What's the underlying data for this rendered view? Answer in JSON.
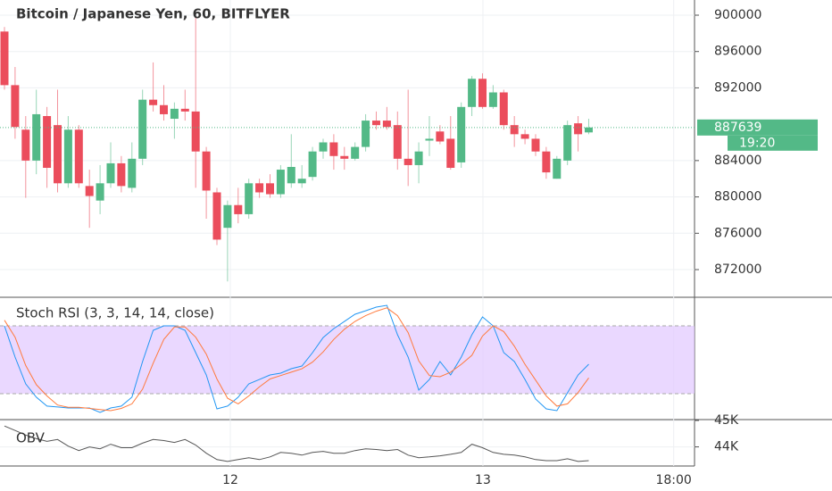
{
  "chart_data": [
    {
      "type": "candlestick",
      "title": "Bitcoin / Japanese Yen, 60, BITFLYER",
      "up_color": "#53b987",
      "down_color": "#eb4d5c",
      "open": [
        898200,
        892300,
        887400,
        884000,
        888900,
        887900,
        881500,
        887400,
        881200,
        879600,
        881500,
        883700,
        881000,
        884200,
        890700,
        890100,
        888600,
        889700,
        889400,
        885000,
        880500,
        876600,
        879100,
        878100,
        881500,
        881500,
        880300,
        881500,
        881500,
        882200,
        885000,
        886000,
        884500,
        884200,
        885500,
        888400,
        888400,
        887900,
        884200,
        883500,
        886200,
        887200,
        886400,
        883800,
        889900,
        893000,
        889900,
        891500,
        887900,
        886900,
        886400,
        885000,
        882000,
        884000,
        888100,
        887100
      ],
      "high": [
        898700,
        894300,
        888900,
        891800,
        889900,
        891800,
        888900,
        887900,
        883000,
        883500,
        886000,
        884500,
        886000,
        891800,
        894800,
        892300,
        890400,
        891800,
        899700,
        885500,
        881000,
        879600,
        881000,
        882000,
        882000,
        882500,
        883500,
        886900,
        883500,
        885500,
        886400,
        886900,
        885500,
        886000,
        889100,
        889400,
        889900,
        889400,
        891800,
        886000,
        888900,
        887900,
        888900,
        890400,
        893300,
        893600,
        892300,
        891800,
        888900,
        887400,
        886900,
        885500,
        884500,
        888400,
        888900,
        888600
      ],
      "low": [
        891800,
        886400,
        879900,
        882500,
        881000,
        880500,
        881000,
        881000,
        876600,
        878100,
        881000,
        880500,
        880500,
        883500,
        889400,
        888400,
        886400,
        888400,
        881000,
        877600,
        874700,
        870700,
        877100,
        877600,
        879900,
        879900,
        879900,
        881000,
        881000,
        881800,
        884200,
        883000,
        883000,
        884000,
        885000,
        887400,
        887400,
        883000,
        881200,
        881500,
        884500,
        885800,
        883000,
        883200,
        888900,
        889700,
        889700,
        887400,
        885500,
        885800,
        884500,
        882000,
        882000,
        883500,
        885000,
        886900
      ],
      "close": [
        892300,
        887700,
        884000,
        889100,
        883200,
        881500,
        887400,
        881500,
        880100,
        881500,
        883700,
        881200,
        884200,
        890700,
        890100,
        889100,
        889700,
        889400,
        885000,
        880700,
        875300,
        879100,
        878100,
        881500,
        880500,
        880300,
        883000,
        883300,
        882000,
        885000,
        886000,
        884500,
        884200,
        885500,
        888400,
        887900,
        887700,
        884200,
        883500,
        885000,
        886400,
        886100,
        883200,
        889900,
        893000,
        889900,
        891500,
        887900,
        886900,
        886400,
        885000,
        882700,
        884200,
        887900,
        886900,
        887639
      ],
      "countdown": "19:20",
      "ylim": [
        868956,
        901670
      ],
      "yticks": [
        900000,
        896000,
        892000,
        884000,
        880000,
        876000,
        872000
      ],
      "xlim": [
        -0.42,
        64.96
      ],
      "xticks": [
        {
          "value": 21.26,
          "label": "12"
        },
        {
          "value": 45.04,
          "label": "13"
        },
        {
          "value": 63,
          "label": "18:00"
        }
      ],
      "grid": true
    },
    {
      "type": "line",
      "title": "Stoch RSI (3, 3, 14, 14, close)",
      "ylim": [
        -2.9,
        105.3
      ],
      "bands": [
        20,
        80
      ],
      "band_color": "#e1c8ff",
      "series": [
        {
          "color": "#2196f3",
          "values": [
            80,
            52.4,
            28.7,
            16.9,
            9.0,
            8.2,
            7.4,
            7.4,
            7.4,
            3.4,
            7.4,
            9.0,
            16.9,
            48.4,
            76.1,
            80,
            80,
            76.1,
            56.3,
            36.6,
            6.6,
            9.0,
            16.9,
            28.7,
            32.6,
            36.6,
            38.2,
            42.1,
            44.5,
            56.3,
            69.7,
            77.6,
            83.9,
            90.3,
            93.4,
            96.6,
            98.2,
            72.1,
            52.4,
            23.2,
            32.6,
            48.4,
            36.6,
            52.4,
            72.1,
            87.9,
            80,
            56.3,
            48.4,
            32.6,
            15.3,
            6.6,
            5.0,
            20.8,
            36.6,
            46.1
          ]
        },
        {
          "color": "#ff7a3d",
          "values": [
            85,
            70,
            45,
            28,
            18,
            10,
            8,
            8,
            7,
            6,
            5,
            7,
            11,
            24,
            47,
            68,
            79,
            79,
            70,
            55,
            33,
            16,
            11,
            18,
            26,
            33,
            36,
            39,
            42,
            48,
            57,
            68,
            77,
            84,
            89,
            93,
            96,
            89,
            74,
            49,
            36,
            35,
            39,
            46,
            54,
            71,
            80,
            75,
            62,
            46,
            32,
            18,
            9,
            11,
            21,
            34
          ]
        }
      ]
    },
    {
      "type": "line",
      "title": "OBV",
      "ylim": [
        43276,
        45034
      ],
      "yticks": [
        {
          "value": 45000,
          "label": "45K"
        },
        {
          "value": 44000,
          "label": "44K"
        }
      ],
      "series": [
        {
          "color": "#555555",
          "values": [
            44790,
            44620,
            44450,
            44310,
            44210,
            44280,
            44030,
            43860,
            44000,
            43930,
            44100,
            43970,
            43970,
            44140,
            44280,
            44240,
            44170,
            44280,
            44070,
            43760,
            43520,
            43450,
            43520,
            43590,
            43520,
            43620,
            43790,
            43760,
            43690,
            43790,
            43830,
            43760,
            43760,
            43860,
            43930,
            43900,
            43860,
            43900,
            43690,
            43590,
            43620,
            43660,
            43720,
            43790,
            44100,
            43970,
            43790,
            43720,
            43690,
            43620,
            43520,
            43480,
            43480,
            43550,
            43450,
            43480
          ]
        }
      ]
    }
  ]
}
